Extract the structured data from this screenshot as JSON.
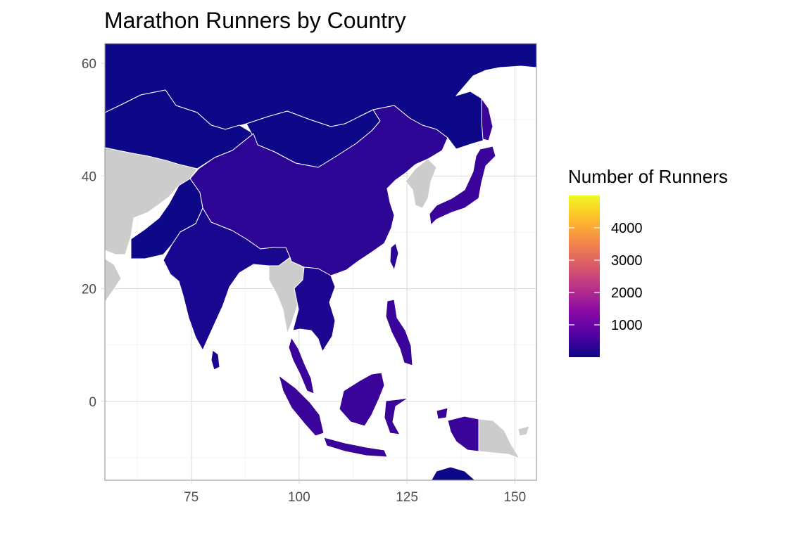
{
  "title": "Marathon Runners by Country",
  "colors": {
    "no_data": "#cccccc",
    "border": "#ffffff",
    "panel_border": "#9e9e9e",
    "gradient": [
      "#0d0887",
      "#5302a3",
      "#8b0aa5",
      "#b83289",
      "#db5c68",
      "#f48849",
      "#febd2a",
      "#f0f921"
    ]
  },
  "map": {
    "lon_range": [
      55,
      155
    ],
    "lat_range": [
      -14,
      63.5
    ],
    "x_ticks": [
      "75",
      "100",
      "125",
      "150"
    ],
    "y_ticks": [
      "0",
      "20",
      "40",
      "60"
    ],
    "x_tick_values": [
      75,
      100,
      125,
      150
    ],
    "y_tick_values": [
      0,
      20,
      40,
      60
    ],
    "grid": true
  },
  "legend": {
    "title": "Number of Runners",
    "range": [
      0,
      5000
    ],
    "ticks": [
      "1000",
      "2000",
      "3000",
      "4000"
    ],
    "tick_values": [
      1000,
      2000,
      3000,
      4000
    ],
    "placement": "right"
  }
}
